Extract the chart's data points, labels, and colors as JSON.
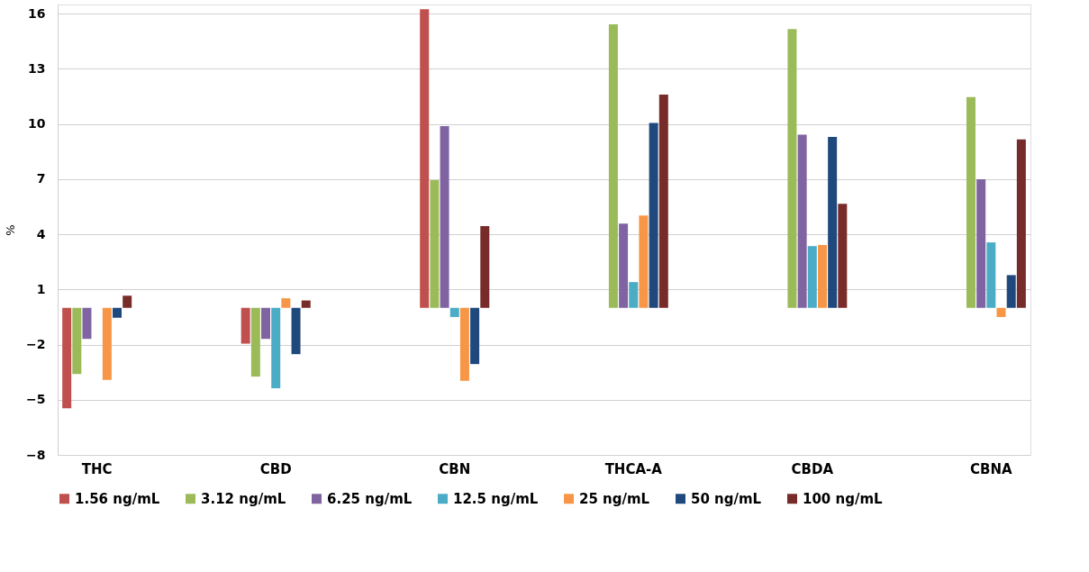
{
  "chart_data": {
    "type": "bar",
    "ylabel": "%",
    "categories": [
      "THC",
      "CBD",
      "CBN",
      "THCA-A",
      "CBDA",
      "CBNA"
    ],
    "series": [
      {
        "name": "1.56 ng/mL",
        "color": "#c0504d",
        "values": [
          -5.46,
          -1.95,
          16.24,
          0,
          0,
          0
        ]
      },
      {
        "name": "3.12 ng/mL",
        "color": "#9bbb59",
        "values": [
          -3.6,
          -3.74,
          6.94,
          15.42,
          15.16,
          11.46
        ]
      },
      {
        "name": "6.25 ng/mL",
        "color": "#8064a2",
        "values": [
          -1.69,
          -1.69,
          9.88,
          4.58,
          9.42,
          7.0
        ]
      },
      {
        "name": "12.5 ng/mL",
        "color": "#4bacc6",
        "values": [
          0,
          -4.37,
          -0.5,
          1.4,
          3.36,
          3.56
        ]
      },
      {
        "name": "25 ng/mL",
        "color": "#f79646",
        "values": [
          -3.92,
          0.52,
          -3.97,
          5.02,
          3.42,
          -0.5
        ]
      },
      {
        "name": "50 ng/mL",
        "color": "#1f497d",
        "values": [
          -0.54,
          -2.52,
          -3.06,
          10.06,
          9.3,
          1.78
        ]
      },
      {
        "name": "100 ng/mL",
        "color": "#772c2a",
        "values": [
          0.66,
          0.4,
          4.44,
          11.6,
          5.66,
          9.16
        ]
      }
    ],
    "ylim": [
      -8,
      16.5
    ],
    "yticks": [
      -8,
      -5,
      -2,
      1,
      4,
      7,
      10,
      13,
      16
    ],
    "grid": "y",
    "legend": "bottom"
  }
}
